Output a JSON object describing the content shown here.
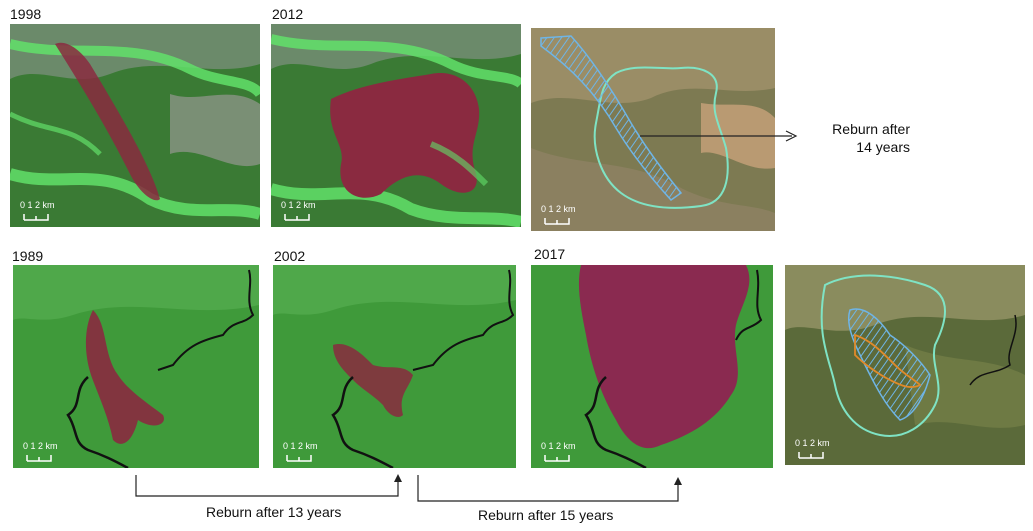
{
  "top_row": {
    "panels": [
      {
        "year": "1998",
        "scale": "0  1  2 km"
      },
      {
        "year": "2012",
        "scale": "0  1  2 km"
      },
      {
        "year": "",
        "scale": "0  1  2 km"
      }
    ],
    "annotation_line1": "Reburn after",
    "annotation_line2": "14 years"
  },
  "bottom_row": {
    "panels": [
      {
        "year": "1989",
        "scale": "0  1  2 km"
      },
      {
        "year": "2002",
        "scale": "0  1  2 km"
      },
      {
        "year": "2017",
        "scale": "0  1  2 km"
      },
      {
        "year": "",
        "scale": "0  1  2 km"
      }
    ],
    "reburn_1": "Reburn after 13 years",
    "reburn_2": "Reburn after 15 years"
  },
  "colors": {
    "burn_scar": "#8a2a40",
    "vegetation": "#3f9a3a",
    "perimeter_outline": "#7fe3c4",
    "reburn_hatch": "#6fb5e6",
    "orange_outline": "#e08a2a"
  }
}
